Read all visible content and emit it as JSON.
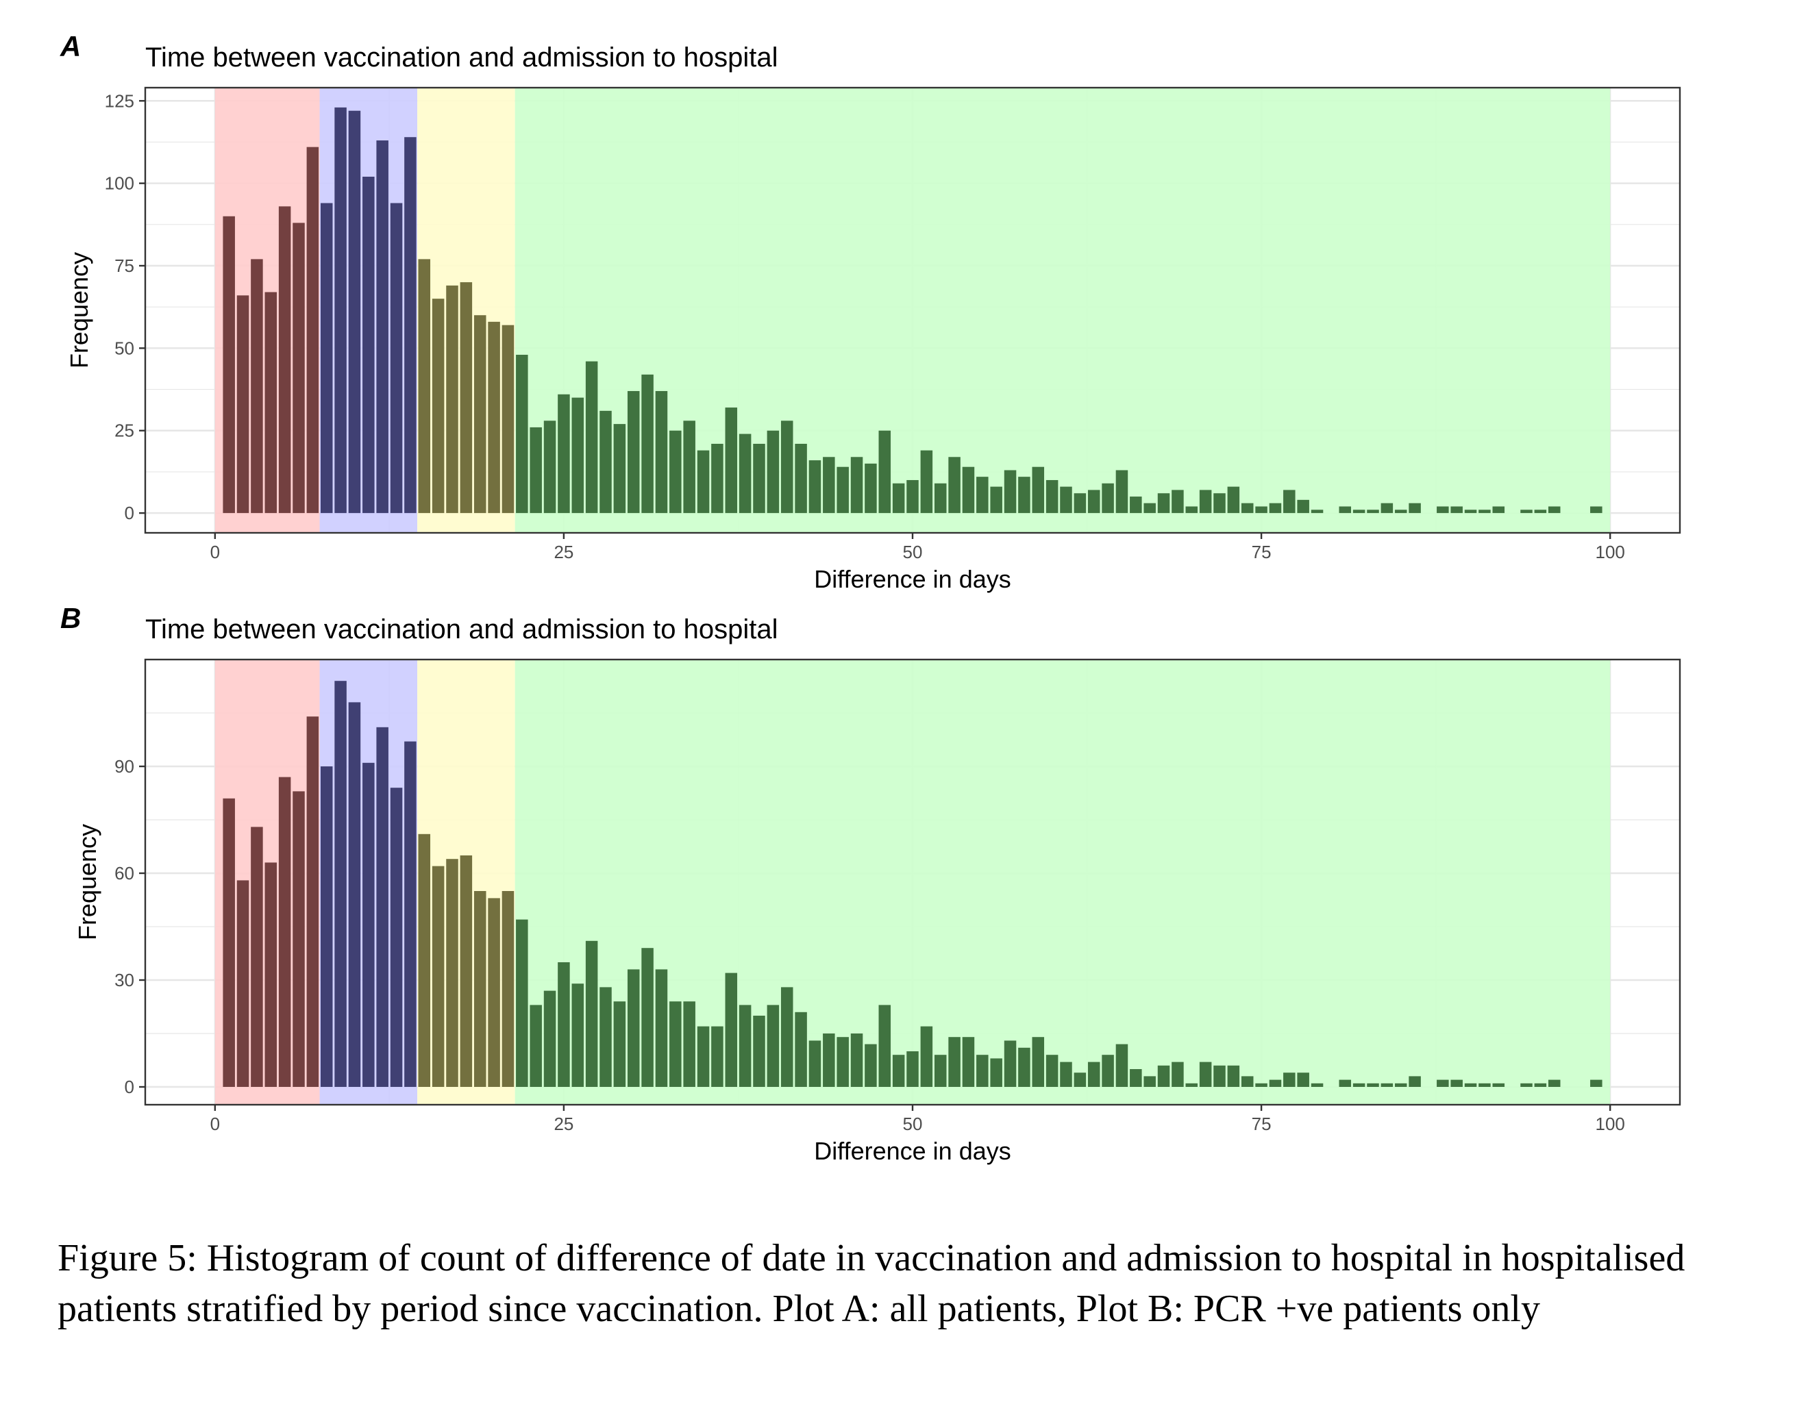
{
  "colors": {
    "band_red": "#ffcccc",
    "band_blue": "#ccccff",
    "band_yellow": "#fffccc",
    "band_green": "#ccffcc",
    "bar_red": "#734040",
    "bar_blue": "#404073",
    "bar_yellow": "#73703f",
    "bar_green": "#407340",
    "panel_border": "#333333",
    "grid": "#e6e6e6"
  },
  "bands": [
    {
      "start": 0,
      "end": 7.5,
      "color": "band_red",
      "bar_color": "bar_red"
    },
    {
      "start": 7.5,
      "end": 14.5,
      "color": "band_blue",
      "bar_color": "bar_blue"
    },
    {
      "start": 14.5,
      "end": 21.5,
      "color": "band_yellow",
      "bar_color": "bar_yellow"
    },
    {
      "start": 21.5,
      "end": 100,
      "color": "band_green",
      "bar_color": "bar_green"
    }
  ],
  "chart_data": [
    {
      "type": "bar",
      "panel_label": "A",
      "title": "Time between vaccination and admission to hospital",
      "xlabel": "Difference in days",
      "ylabel": "Frequency",
      "xlim": [
        -5,
        105
      ],
      "ylim": [
        -6,
        129
      ],
      "xticks": [
        0,
        25,
        50,
        75,
        100
      ],
      "yticks": [
        0,
        25,
        50,
        75,
        100,
        125
      ],
      "grid": true,
      "x": [
        1,
        2,
        3,
        4,
        5,
        6,
        7,
        8,
        9,
        10,
        11,
        12,
        13,
        14,
        15,
        16,
        17,
        18,
        19,
        20,
        21,
        22,
        23,
        24,
        25,
        26,
        27,
        28,
        29,
        30,
        31,
        32,
        33,
        34,
        35,
        36,
        37,
        38,
        39,
        40,
        41,
        42,
        43,
        44,
        45,
        46,
        47,
        48,
        49,
        50,
        51,
        52,
        53,
        54,
        55,
        56,
        57,
        58,
        59,
        60,
        61,
        62,
        63,
        64,
        65,
        66,
        67,
        68,
        69,
        70,
        71,
        72,
        73,
        74,
        75,
        76,
        77,
        78,
        79,
        80,
        81,
        82,
        83,
        84,
        85,
        86,
        87,
        88,
        89,
        90,
        91,
        92,
        93,
        94,
        95,
        96,
        97,
        98,
        99
      ],
      "values": [
        90,
        66,
        77,
        67,
        93,
        88,
        111,
        94,
        123,
        122,
        102,
        113,
        94,
        114,
        77,
        65,
        69,
        70,
        60,
        58,
        57,
        48,
        26,
        28,
        36,
        35,
        46,
        31,
        27,
        37,
        42,
        37,
        25,
        28,
        19,
        21,
        32,
        24,
        21,
        25,
        28,
        21,
        16,
        17,
        14,
        17,
        15,
        25,
        9,
        10,
        19,
        9,
        17,
        14,
        11,
        8,
        13,
        11,
        14,
        10,
        8,
        6,
        7,
        9,
        13,
        5,
        3,
        6,
        7,
        2,
        7,
        6,
        8,
        3,
        2,
        3,
        7,
        4,
        1,
        0,
        2,
        1,
        1,
        3,
        1,
        3,
        0,
        2,
        2,
        1,
        1,
        2,
        0,
        1,
        1,
        2,
        0,
        0,
        2
      ]
    },
    {
      "type": "bar",
      "panel_label": "B",
      "title": "Time between vaccination and admission to hospital",
      "xlabel": "Difference in days",
      "ylabel": "Frequency",
      "xlim": [
        -5,
        105
      ],
      "ylim": [
        -5,
        120
      ],
      "xticks": [
        0,
        25,
        50,
        75,
        100
      ],
      "yticks": [
        0,
        30,
        60,
        90
      ],
      "grid": true,
      "x": [
        1,
        2,
        3,
        4,
        5,
        6,
        7,
        8,
        9,
        10,
        11,
        12,
        13,
        14,
        15,
        16,
        17,
        18,
        19,
        20,
        21,
        22,
        23,
        24,
        25,
        26,
        27,
        28,
        29,
        30,
        31,
        32,
        33,
        34,
        35,
        36,
        37,
        38,
        39,
        40,
        41,
        42,
        43,
        44,
        45,
        46,
        47,
        48,
        49,
        50,
        51,
        52,
        53,
        54,
        55,
        56,
        57,
        58,
        59,
        60,
        61,
        62,
        63,
        64,
        65,
        66,
        67,
        68,
        69,
        70,
        71,
        72,
        73,
        74,
        75,
        76,
        77,
        78,
        79,
        80,
        81,
        82,
        83,
        84,
        85,
        86,
        87,
        88,
        89,
        90,
        91,
        92,
        93,
        94,
        95,
        96,
        97,
        98,
        99
      ],
      "values": [
        81,
        58,
        73,
        63,
        87,
        83,
        104,
        90,
        114,
        108,
        91,
        101,
        84,
        97,
        71,
        62,
        64,
        65,
        55,
        53,
        55,
        47,
        23,
        27,
        35,
        29,
        41,
        28,
        24,
        33,
        39,
        33,
        24,
        24,
        17,
        17,
        32,
        23,
        20,
        23,
        28,
        21,
        13,
        15,
        14,
        15,
        12,
        23,
        9,
        10,
        17,
        9,
        14,
        14,
        9,
        8,
        13,
        11,
        14,
        9,
        7,
        4,
        7,
        9,
        12,
        5,
        3,
        6,
        7,
        1,
        7,
        6,
        6,
        3,
        1,
        2,
        4,
        4,
        1,
        0,
        2,
        1,
        1,
        1,
        1,
        3,
        0,
        2,
        2,
        1,
        1,
        1,
        0,
        1,
        1,
        2,
        0,
        0,
        2
      ]
    }
  ],
  "caption": "Figure 5: Histogram of count of difference of date in vaccination and admission to hospital in hospitalised patients stratified by period since vaccination. Plot A: all patients, Plot B: PCR +ve patients only"
}
